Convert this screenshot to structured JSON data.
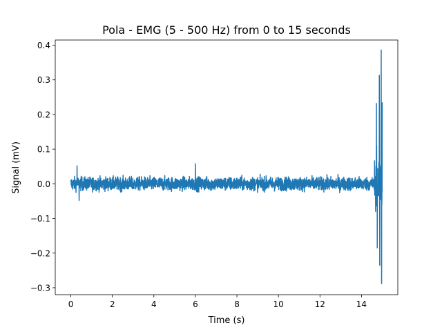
{
  "chart_data": {
    "type": "line",
    "title": "Pola - EMG (5 - 500 Hz) from 0 to 15 seconds",
    "xlabel": "Time (s)",
    "ylabel": "Signal (mV)",
    "xlim": [
      -0.75,
      15.75
    ],
    "ylim": [
      -0.32,
      0.415
    ],
    "xticks": [
      0,
      2,
      4,
      6,
      8,
      10,
      12,
      14
    ],
    "xtick_labels": [
      "0",
      "2",
      "4",
      "6",
      "8",
      "10",
      "12",
      "14"
    ],
    "yticks": [
      -0.3,
      -0.2,
      -0.1,
      0.0,
      0.1,
      0.2,
      0.3,
      0.4
    ],
    "ytick_labels": [
      "−0.3",
      "−0.2",
      "−0.1",
      "0.0",
      "0.1",
      "0.2",
      "0.3",
      "0.4"
    ],
    "grid": false,
    "series": [
      {
        "color": "#1f77b4",
        "x_range": [
          0,
          15
        ],
        "baseline_amplitude": 0.045,
        "spikes": [
          {
            "x": 0.3,
            "y": 0.052
          },
          {
            "x": 0.4,
            "y": -0.048
          },
          {
            "x": 6.0,
            "y": 0.058
          },
          {
            "x": 14.72,
            "y": 0.232
          },
          {
            "x": 14.76,
            "y": -0.185
          },
          {
            "x": 14.86,
            "y": 0.313
          },
          {
            "x": 14.88,
            "y": -0.235
          },
          {
            "x": 14.95,
            "y": 0.386
          },
          {
            "x": 14.97,
            "y": -0.288
          },
          {
            "x": 15.0,
            "y": 0.235
          }
        ]
      }
    ]
  }
}
